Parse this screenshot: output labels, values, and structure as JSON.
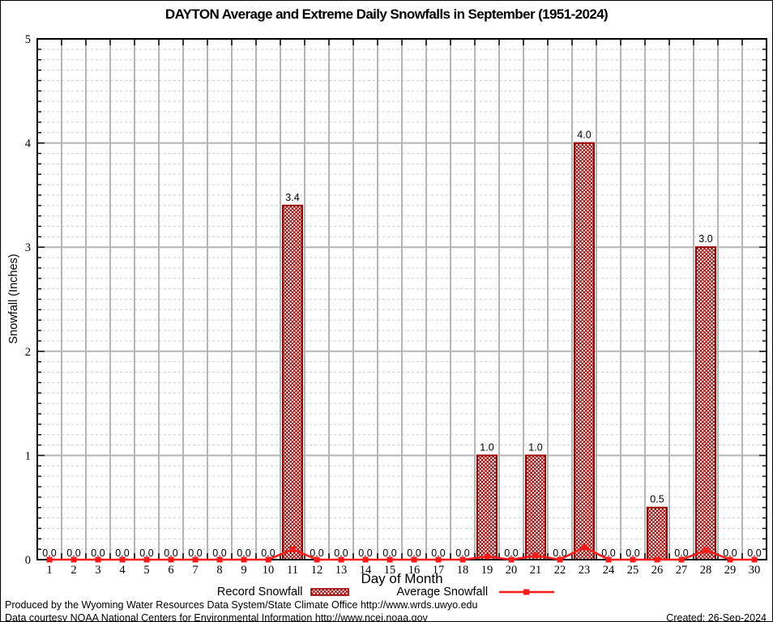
{
  "chart_data": {
    "type": "bar+line",
    "title": "DAYTON Average and Extreme Daily Snowfalls in September (1951-2024)",
    "xlabel": "Day of Month",
    "ylabel": "Snowfall (Inches)",
    "ylim": [
      0,
      5
    ],
    "y_major_step": 1,
    "y_minor_step": 0.1,
    "grid": "major-solid, minor-dashed, vertical lines at day boundaries",
    "legend_position": "bottom-center",
    "x": [
      1,
      2,
      3,
      4,
      5,
      6,
      7,
      8,
      9,
      10,
      11,
      12,
      13,
      14,
      15,
      16,
      17,
      18,
      19,
      20,
      21,
      22,
      23,
      24,
      25,
      26,
      27,
      28,
      29,
      30
    ],
    "series": [
      {
        "name": "Record Snowfall",
        "type": "bar",
        "values": [
          0,
          0,
          0,
          0,
          0,
          0,
          0,
          0,
          0,
          0,
          3.4,
          0,
          0,
          0,
          0,
          0,
          0,
          0,
          1.0,
          0,
          1.0,
          0,
          4.0,
          0,
          0,
          0.5,
          0,
          3.0,
          0,
          0
        ],
        "labels_shown": true,
        "label_format": "one-decimal"
      },
      {
        "name": "Average Snowfall",
        "type": "line",
        "values": [
          0,
          0,
          0,
          0,
          0,
          0,
          0,
          0,
          0,
          0,
          0.1,
          0,
          0,
          0,
          0,
          0,
          0,
          0,
          0.03,
          0,
          0.04,
          0,
          0.12,
          0,
          0,
          0,
          0,
          0.09,
          0,
          0
        ]
      }
    ],
    "colors": {
      "bar_border": "#990000",
      "bar_hatch": "#990000",
      "line": "#ff1a1a",
      "grid_major": "#b5b5b5",
      "grid_minor": "#cccccc",
      "axis": "#000000",
      "background": "#ffffff"
    }
  },
  "legend": {
    "record": "Record Snowfall",
    "average": "Average Snowfall"
  },
  "footer": {
    "line1": "Produced by the Wyoming Water Resources Data System/State Climate Office http://www.wrds.uwyo.edu",
    "line2": "Data courtesy NOAA National Centers for Environmental Information http://www.ncei.noaa.gov",
    "created": "Created: 26-Sep-2024"
  }
}
